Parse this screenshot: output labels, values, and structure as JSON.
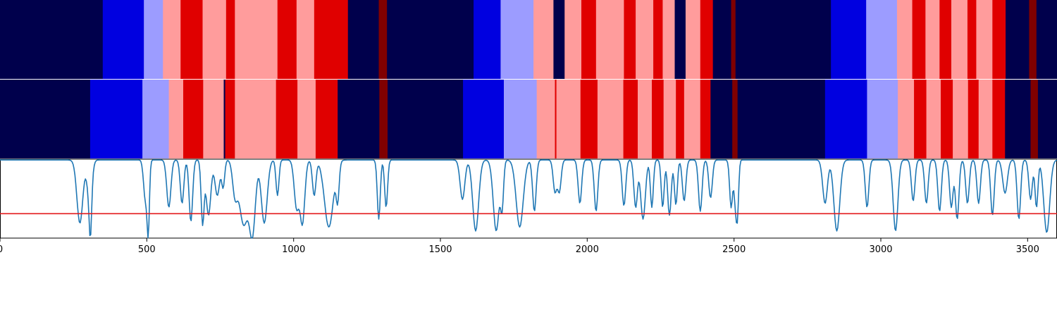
{
  "chart_data": {
    "type": "area",
    "x_domain": [
      0,
      3600
    ],
    "xticks": [
      "0",
      "500",
      "1000",
      "1500",
      "2000",
      "2500",
      "3000",
      "3500"
    ],
    "xtick_values": [
      0,
      500,
      1000,
      1500,
      2000,
      2500,
      3000,
      3500
    ],
    "palette": {
      "0": "#00004c",
      "1": "#0000e0",
      "2": "#9c9cff",
      "3": "#ff9c9c",
      "4": "#e00000",
      "5": "#800000"
    },
    "strips": [
      {
        "segments": [
          [
            0,
            350,
            0
          ],
          [
            350,
            490,
            1
          ],
          [
            490,
            555,
            2
          ],
          [
            555,
            615,
            3
          ],
          [
            615,
            690,
            4
          ],
          [
            690,
            770,
            3
          ],
          [
            770,
            800,
            4
          ],
          [
            800,
            945,
            3
          ],
          [
            945,
            1010,
            4
          ],
          [
            1010,
            1070,
            3
          ],
          [
            1070,
            1185,
            4
          ],
          [
            1185,
            1290,
            0
          ],
          [
            1290,
            1318,
            5
          ],
          [
            1318,
            1613,
            0
          ],
          [
            1613,
            1705,
            1
          ],
          [
            1705,
            1817,
            2
          ],
          [
            1817,
            1885,
            3
          ],
          [
            1885,
            1923,
            0
          ],
          [
            1923,
            1980,
            3
          ],
          [
            1980,
            2030,
            4
          ],
          [
            2030,
            2125,
            3
          ],
          [
            2125,
            2165,
            4
          ],
          [
            2165,
            2225,
            3
          ],
          [
            2225,
            2257,
            4
          ],
          [
            2257,
            2298,
            3
          ],
          [
            2298,
            2335,
            0
          ],
          [
            2335,
            2385,
            3
          ],
          [
            2385,
            2428,
            4
          ],
          [
            2428,
            2490,
            0
          ],
          [
            2490,
            2505,
            5
          ],
          [
            2505,
            2830,
            0
          ],
          [
            2830,
            2950,
            1
          ],
          [
            2950,
            3055,
            2
          ],
          [
            3055,
            3107,
            3
          ],
          [
            3107,
            3152,
            4
          ],
          [
            3152,
            3200,
            3
          ],
          [
            3200,
            3240,
            4
          ],
          [
            3240,
            3295,
            3
          ],
          [
            3295,
            3325,
            4
          ],
          [
            3325,
            3380,
            3
          ],
          [
            3380,
            3425,
            4
          ],
          [
            3425,
            3505,
            0
          ],
          [
            3505,
            3530,
            5
          ],
          [
            3530,
            3600,
            0
          ]
        ]
      },
      {
        "segments": [
          [
            0,
            307,
            0
          ],
          [
            307,
            485,
            1
          ],
          [
            485,
            575,
            2
          ],
          [
            575,
            624,
            3
          ],
          [
            624,
            692,
            4
          ],
          [
            692,
            762,
            3
          ],
          [
            762,
            767,
            0
          ],
          [
            767,
            800,
            4
          ],
          [
            800,
            940,
            3
          ],
          [
            940,
            1013,
            4
          ],
          [
            1013,
            1075,
            3
          ],
          [
            1075,
            1150,
            4
          ],
          [
            1150,
            1292,
            0
          ],
          [
            1292,
            1320,
            5
          ],
          [
            1320,
            1577,
            0
          ],
          [
            1577,
            1716,
            1
          ],
          [
            1716,
            1828,
            2
          ],
          [
            1828,
            1890,
            3
          ],
          [
            1890,
            1895,
            4
          ],
          [
            1895,
            1977,
            3
          ],
          [
            1977,
            2035,
            4
          ],
          [
            2035,
            2123,
            3
          ],
          [
            2123,
            2172,
            4
          ],
          [
            2172,
            2220,
            3
          ],
          [
            2220,
            2260,
            4
          ],
          [
            2260,
            2302,
            3
          ],
          [
            2302,
            2330,
            4
          ],
          [
            2330,
            2385,
            3
          ],
          [
            2385,
            2420,
            4
          ],
          [
            2420,
            2494,
            0
          ],
          [
            2494,
            2512,
            5
          ],
          [
            2512,
            2810,
            0
          ],
          [
            2810,
            2953,
            1
          ],
          [
            2953,
            3058,
            2
          ],
          [
            3058,
            3113,
            3
          ],
          [
            3113,
            3155,
            4
          ],
          [
            3155,
            3204,
            3
          ],
          [
            3204,
            3245,
            4
          ],
          [
            3245,
            3297,
            3
          ],
          [
            3297,
            3333,
            4
          ],
          [
            3333,
            3380,
            3
          ],
          [
            3380,
            3423,
            4
          ],
          [
            3423,
            3510,
            0
          ],
          [
            3510,
            3535,
            5
          ],
          [
            3535,
            3600,
            0
          ]
        ]
      }
    ],
    "signal": {
      "color": "#1f77b4",
      "ylim": [
        0,
        1
      ],
      "baseline": 0.99,
      "threshold": {
        "value": 0.31,
        "color": "#e31a1c"
      },
      "dips": [
        [
          272,
          0.2,
          10
        ],
        [
          305,
          0.5,
          8
        ],
        [
          308,
          0.48,
          4
        ],
        [
          495,
          0.5,
          6
        ],
        [
          505,
          0.15,
          4
        ],
        [
          575,
          0.4,
          7
        ],
        [
          620,
          0.45,
          6
        ],
        [
          650,
          0.22,
          6
        ],
        [
          690,
          0.2,
          5
        ],
        [
          710,
          0.3,
          8
        ],
        [
          740,
          0.55,
          8
        ],
        [
          760,
          0.66,
          5
        ],
        [
          800,
          0.6,
          8
        ],
        [
          830,
          0.18,
          15
        ],
        [
          860,
          0.12,
          10
        ],
        [
          900,
          0.2,
          10
        ],
        [
          945,
          0.55,
          5
        ],
        [
          1010,
          0.4,
          8
        ],
        [
          1030,
          0.2,
          8
        ],
        [
          1070,
          0.55,
          6
        ],
        [
          1120,
          0.15,
          15
        ],
        [
          1150,
          0.55,
          5
        ],
        [
          1290,
          0.25,
          5
        ],
        [
          1315,
          0.4,
          5
        ],
        [
          1575,
          0.5,
          8
        ],
        [
          1620,
          0.1,
          10
        ],
        [
          1690,
          0.1,
          10
        ],
        [
          1710,
          0.45,
          5
        ],
        [
          1770,
          0.15,
          12
        ],
        [
          1820,
          0.35,
          6
        ],
        [
          1890,
          0.6,
          6
        ],
        [
          1905,
          0.6,
          6
        ],
        [
          1975,
          0.45,
          6
        ],
        [
          2030,
          0.35,
          6
        ],
        [
          2125,
          0.42,
          6
        ],
        [
          2165,
          0.4,
          6
        ],
        [
          2190,
          0.25,
          8
        ],
        [
          2220,
          0.4,
          5
        ],
        [
          2257,
          0.4,
          5
        ],
        [
          2280,
          0.3,
          6
        ],
        [
          2302,
          0.43,
          5
        ],
        [
          2330,
          0.48,
          6
        ],
        [
          2385,
          0.35,
          6
        ],
        [
          2420,
          0.52,
          6
        ],
        [
          2490,
          0.4,
          5
        ],
        [
          2505,
          0.45,
          5
        ],
        [
          2512,
          0.45,
          4
        ],
        [
          2810,
          0.45,
          8
        ],
        [
          2850,
          0.1,
          10
        ],
        [
          2953,
          0.4,
          6
        ],
        [
          3050,
          0.1,
          8
        ],
        [
          3110,
          0.48,
          6
        ],
        [
          3155,
          0.45,
          6
        ],
        [
          3200,
          0.35,
          6
        ],
        [
          3240,
          0.4,
          6
        ],
        [
          3260,
          0.25,
          6
        ],
        [
          3295,
          0.45,
          6
        ],
        [
          3333,
          0.45,
          6
        ],
        [
          3380,
          0.3,
          6
        ],
        [
          3423,
          0.58,
          8
        ],
        [
          3470,
          0.25,
          6
        ],
        [
          3510,
          0.5,
          6
        ],
        [
          3530,
          0.4,
          5
        ],
        [
          3565,
          0.08,
          10
        ]
      ]
    }
  }
}
